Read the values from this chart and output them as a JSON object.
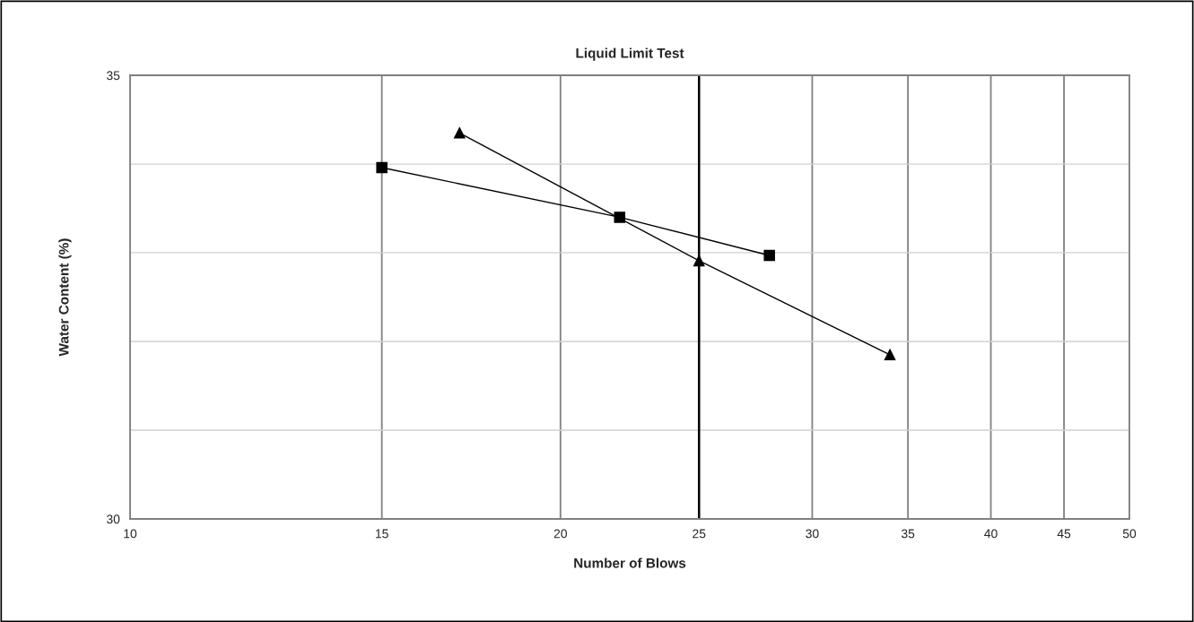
{
  "chart_data": {
    "type": "line",
    "title": "Liquid Limit Test",
    "xlabel": "Number of Blows",
    "ylabel": "Water Content (%)",
    "log": "x",
    "xlim": [
      10,
      50
    ],
    "xticks": [
      10,
      15,
      20,
      25,
      30,
      35,
      40,
      45,
      50
    ],
    "ylim": [
      30,
      35
    ],
    "yticks": [
      30,
      {
        "value": 31,
        "label": null
      },
      {
        "value": 32,
        "label": null
      },
      {
        "value": 33,
        "label": null
      },
      {
        "value": 34,
        "label": null
      },
      35
    ],
    "grid": true,
    "legend": false,
    "ref_lines": [
      {
        "axis": "x",
        "value": 25,
        "label": null,
        "color": "#000000",
        "line_style": "solid"
      }
    ],
    "series": [
      {
        "color": "#000000",
        "marker": "square",
        "line_style": "solid",
        "x": [
          15,
          22,
          28
        ],
        "values": [
          33.96,
          33.4,
          32.97
        ]
      },
      {
        "color": "#000000",
        "marker": "triangle",
        "line_style": "solid",
        "x": [
          17,
          25,
          34
        ],
        "values": [
          34.35,
          32.91,
          31.85
        ]
      }
    ]
  }
}
